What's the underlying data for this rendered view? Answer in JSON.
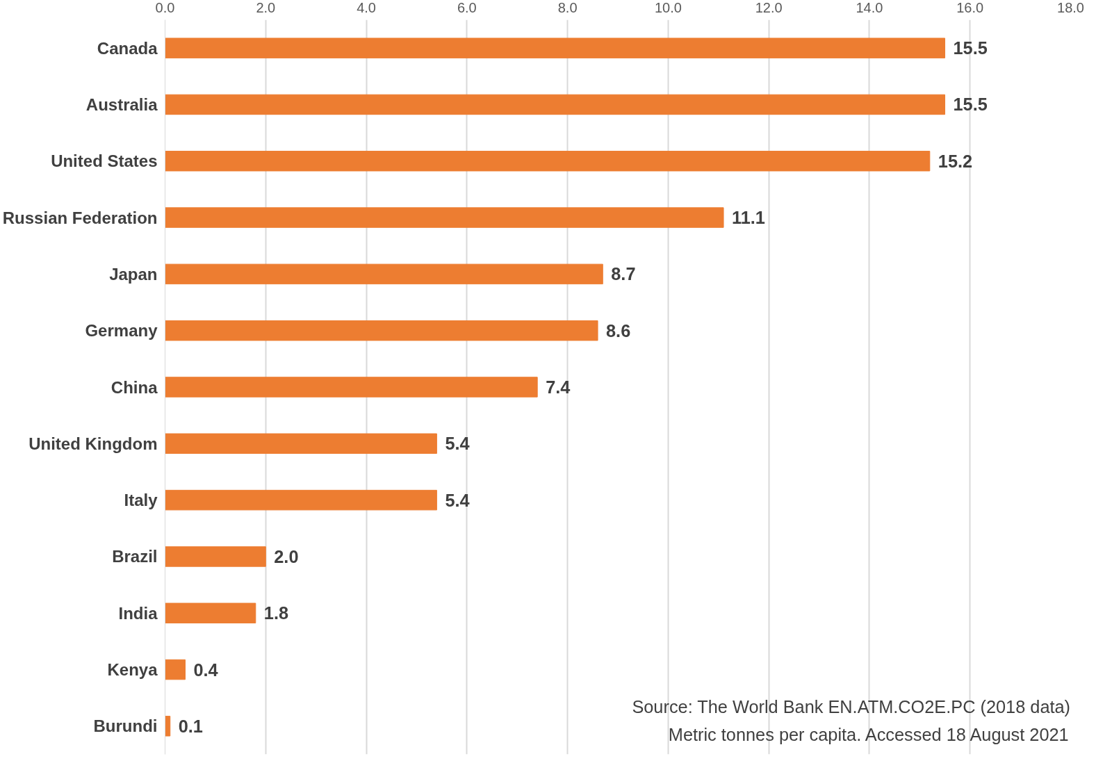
{
  "chart_data": {
    "type": "bar",
    "orientation": "horizontal",
    "categories": [
      "Canada",
      "Australia",
      "United States",
      "Russian Federation",
      "Japan",
      "Germany",
      "China",
      "United Kingdom",
      "Italy",
      "Brazil",
      "India",
      "Kenya",
      "Burundi"
    ],
    "values": [
      15.5,
      15.5,
      15.2,
      11.1,
      8.7,
      8.6,
      7.4,
      5.4,
      5.4,
      2.0,
      1.8,
      0.4,
      0.1
    ],
    "color": "#ed7d31",
    "xlim": [
      0,
      18
    ],
    "xticks": [
      {
        "value": 0,
        "label": "0.0"
      },
      {
        "value": 2,
        "label": "2.0"
      },
      {
        "value": 4,
        "label": "4.0"
      },
      {
        "value": 6,
        "label": "6.0"
      },
      {
        "value": 8,
        "label": "8.0"
      },
      {
        "value": 10,
        "label": "10.0"
      },
      {
        "value": 12,
        "label": "12.0"
      },
      {
        "value": 14,
        "label": "14.0"
      },
      {
        "value": 16,
        "label": "16.0"
      },
      {
        "value": 18,
        "label": "18.0"
      }
    ],
    "grid": "x",
    "value_labels": [
      "15.5",
      "15.5",
      "15.2",
      "11.1",
      "8.7",
      "8.6",
      "7.4",
      "5.4",
      "5.4",
      "2.0",
      "1.8",
      "0.4",
      "0.1"
    ],
    "annotations": [
      "Source: The World Bank EN.ATM.CO2E.PC (2018 data)",
      "Metric tonnes per capita. Accessed 18 August 2021"
    ]
  }
}
